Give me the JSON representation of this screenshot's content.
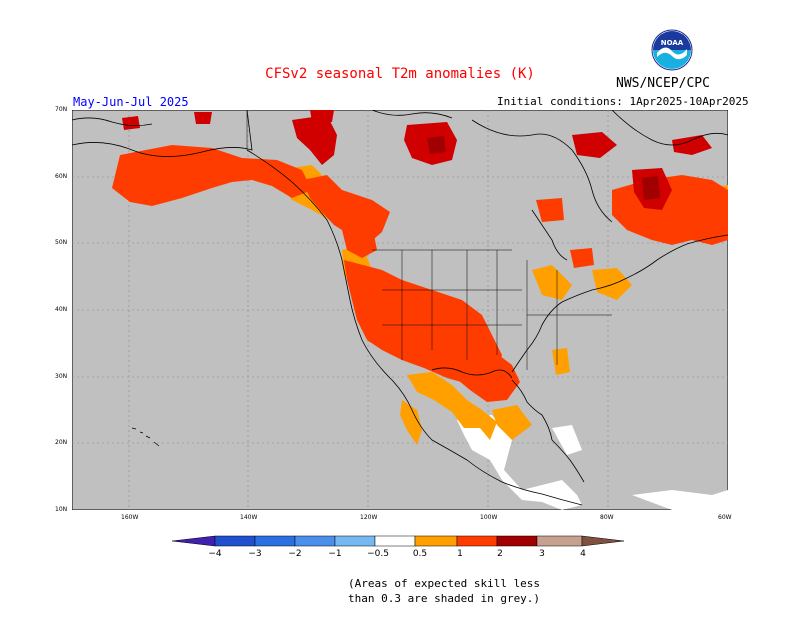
{
  "header": {
    "title": "CFSv2 seasonal T2m anomalies (K)",
    "season": "May-Jun-Jul 2025",
    "initial_conditions": "Initial conditions: 1Apr2025-10Apr2025",
    "agency": "NWS/NCEP/CPC",
    "logo_text": "NOAA"
  },
  "map": {
    "lat_labels": [
      "70N",
      "60N",
      "50N",
      "40N",
      "30N",
      "20N",
      "10N"
    ],
    "lon_labels": [
      "160W",
      "140W",
      "120W",
      "100W",
      "80W",
      "60W"
    ],
    "background_color": "#c0c0c0"
  },
  "colorbar": {
    "labels": [
      "−4",
      "−3",
      "−2",
      "−1",
      "−0.5",
      "0.5",
      "1",
      "2",
      "3",
      "4"
    ],
    "colors": [
      "#4020b0",
      "#2050d0",
      "#3a80e8",
      "#60a8f0",
      "#9ccff8",
      "#ffffff",
      "#ffa000",
      "#ff3c00",
      "#d00000",
      "#a00000",
      "#c8a090",
      "#805040"
    ]
  },
  "note": {
    "line1": "(Areas of expected skill less",
    "line2": " than 0.3 are shaded in grey.)"
  }
}
